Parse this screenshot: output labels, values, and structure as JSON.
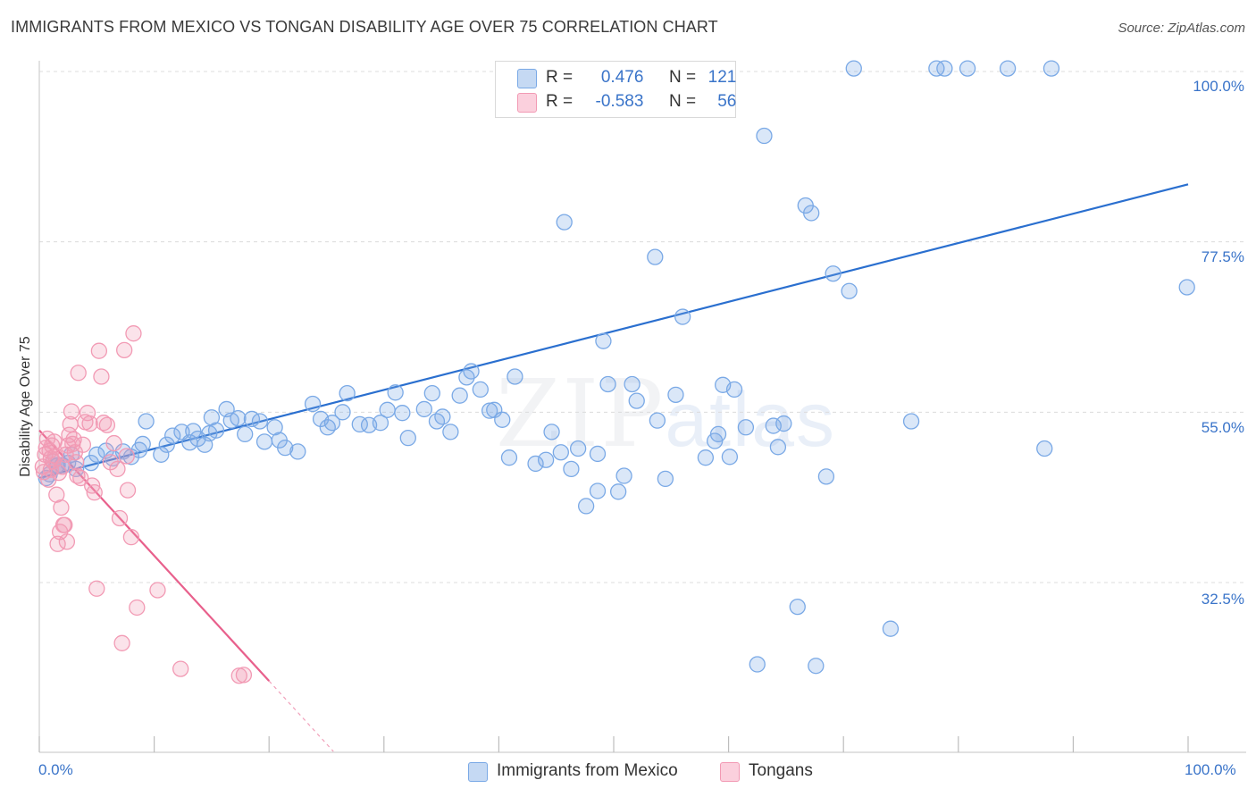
{
  "title": "IMMIGRANTS FROM MEXICO VS TONGAN DISABILITY AGE OVER 75 CORRELATION CHART",
  "source": "Source: ZipAtlas.com",
  "watermark": {
    "zip": "ZIP",
    "atlas": "atlas"
  },
  "legend": {
    "r_label": "R =",
    "n_label": "N =",
    "rows": [
      {
        "series": "Immigrants from Mexico",
        "r": "0.476",
        "n": "121",
        "color": "#7aa9e6"
      },
      {
        "series": "Tongans",
        "r": "-0.583",
        "n": "56",
        "color": "#f29ab4"
      }
    ]
  },
  "chart_data": {
    "type": "scatter",
    "title": "IMMIGRANTS FROM MEXICO VS TONGAN DISABILITY AGE OVER 75 CORRELATION CHART",
    "xlabel": "",
    "ylabel": "Disability Age Over 75",
    "xlim": [
      0,
      100
    ],
    "ylim": [
      10,
      102
    ],
    "x_tick_labels": [
      "0.0%",
      "100.0%"
    ],
    "y_ticks": [
      32.5,
      55.0,
      77.5,
      100.0
    ],
    "y_tick_labels": [
      "32.5%",
      "55.0%",
      "77.5%",
      "100.0%"
    ],
    "grid": "horizontal dashed",
    "legend_position": "top-center",
    "series": [
      {
        "name": "Immigrants from Mexico",
        "color": "#7aa9e6",
        "trend": {
          "x0": 0.0,
          "y0": 46.3,
          "x1": 100.0,
          "y1": 85.1,
          "color": "#2a6fcf"
        },
        "points": [
          [
            0.6,
            46.3
          ],
          [
            0.9,
            46.8
          ],
          [
            1.2,
            48.5
          ],
          [
            1.5,
            47.9
          ],
          [
            2.0,
            48.0
          ],
          [
            2.5,
            48.3
          ],
          [
            2.8,
            49.4
          ],
          [
            3.2,
            47.5
          ],
          [
            4.5,
            48.3
          ],
          [
            5.0,
            49.4
          ],
          [
            5.8,
            49.9
          ],
          [
            6.4,
            48.9
          ],
          [
            7.3,
            49.8
          ],
          [
            8.0,
            49.1
          ],
          [
            8.7,
            50.0
          ],
          [
            9.0,
            50.8
          ],
          [
            9.3,
            53.8
          ],
          [
            10.6,
            49.4
          ],
          [
            11.1,
            50.7
          ],
          [
            11.6,
            51.9
          ],
          [
            12.4,
            52.4
          ],
          [
            13.1,
            51.0
          ],
          [
            13.4,
            52.5
          ],
          [
            13.8,
            51.5
          ],
          [
            14.4,
            50.7
          ],
          [
            14.8,
            52.2
          ],
          [
            15.0,
            54.3
          ],
          [
            15.4,
            52.6
          ],
          [
            16.3,
            55.4
          ],
          [
            16.7,
            53.9
          ],
          [
            17.3,
            54.2
          ],
          [
            17.9,
            52.1
          ],
          [
            18.5,
            54.1
          ],
          [
            19.2,
            53.8
          ],
          [
            19.6,
            51.1
          ],
          [
            20.5,
            53.0
          ],
          [
            20.9,
            51.3
          ],
          [
            21.4,
            50.3
          ],
          [
            22.5,
            49.8
          ],
          [
            23.8,
            56.1
          ],
          [
            24.5,
            54.1
          ],
          [
            25.1,
            53.0
          ],
          [
            25.5,
            53.6
          ],
          [
            26.4,
            55.0
          ],
          [
            26.8,
            57.5
          ],
          [
            27.9,
            53.4
          ],
          [
            28.7,
            53.3
          ],
          [
            29.7,
            53.6
          ],
          [
            30.3,
            55.3
          ],
          [
            31.0,
            57.6
          ],
          [
            31.6,
            54.9
          ],
          [
            32.1,
            51.6
          ],
          [
            33.5,
            55.4
          ],
          [
            34.2,
            57.5
          ],
          [
            34.6,
            53.8
          ],
          [
            35.1,
            54.4
          ],
          [
            35.8,
            52.4
          ],
          [
            36.6,
            57.2
          ],
          [
            37.2,
            59.6
          ],
          [
            37.6,
            60.4
          ],
          [
            38.4,
            58.0
          ],
          [
            39.2,
            55.2
          ],
          [
            39.6,
            55.3
          ],
          [
            40.3,
            54.0
          ],
          [
            40.9,
            49.0
          ],
          [
            41.4,
            59.7
          ],
          [
            43.2,
            48.2
          ],
          [
            44.1,
            48.7
          ],
          [
            44.6,
            52.4
          ],
          [
            45.4,
            49.7
          ],
          [
            45.7,
            80.1
          ],
          [
            46.3,
            47.5
          ],
          [
            46.9,
            50.2
          ],
          [
            47.6,
            42.6
          ],
          [
            48.6,
            44.6
          ],
          [
            48.6,
            49.5
          ],
          [
            49.1,
            64.4
          ],
          [
            49.5,
            58.7
          ],
          [
            50.4,
            44.5
          ],
          [
            50.9,
            46.6
          ],
          [
            51.6,
            58.7
          ],
          [
            52.0,
            56.5
          ],
          [
            53.6,
            75.5
          ],
          [
            53.8,
            53.9
          ],
          [
            54.5,
            46.2
          ],
          [
            55.4,
            57.3
          ],
          [
            56.0,
            67.6
          ],
          [
            58.0,
            49.0
          ],
          [
            58.8,
            51.2
          ],
          [
            59.1,
            52.1
          ],
          [
            59.5,
            58.6
          ],
          [
            60.1,
            49.1
          ],
          [
            60.5,
            58.0
          ],
          [
            61.5,
            53.0
          ],
          [
            62.5,
            21.7
          ],
          [
            63.1,
            91.5
          ],
          [
            63.9,
            53.2
          ],
          [
            64.3,
            50.4
          ],
          [
            64.8,
            53.5
          ],
          [
            66.0,
            29.3
          ],
          [
            66.7,
            82.3
          ],
          [
            67.2,
            81.3
          ],
          [
            67.6,
            21.5
          ],
          [
            68.5,
            46.5
          ],
          [
            69.1,
            73.3
          ],
          [
            70.5,
            71.0
          ],
          [
            70.9,
            100.4
          ],
          [
            74.1,
            26.4
          ],
          [
            75.9,
            53.8
          ],
          [
            78.1,
            100.4
          ],
          [
            78.8,
            100.4
          ],
          [
            80.8,
            100.4
          ],
          [
            84.3,
            100.4
          ],
          [
            87.5,
            50.2
          ],
          [
            88.1,
            100.4
          ],
          [
            99.9,
            71.5
          ],
          [
            1.6,
            48.0
          ]
        ]
      },
      {
        "name": "Tongans",
        "color": "#f29ab4",
        "trend": {
          "x0": 0.0,
          "y0": 52.6,
          "x1": 20.0,
          "y1": 19.5,
          "dash_to_x": 25.6,
          "dash_to_y": 10.2,
          "color": "#e8608c"
        },
        "points": [
          [
            0.3,
            47.8
          ],
          [
            0.4,
            47.1
          ],
          [
            0.5,
            49.4
          ],
          [
            0.6,
            50.3
          ],
          [
            0.7,
            51.5
          ],
          [
            0.8,
            46.1
          ],
          [
            0.9,
            49.9
          ],
          [
            1.0,
            47.4
          ],
          [
            1.1,
            50.6
          ],
          [
            1.2,
            48.5
          ],
          [
            1.3,
            51.1
          ],
          [
            1.4,
            49.2
          ],
          [
            1.5,
            44.1
          ],
          [
            1.6,
            37.6
          ],
          [
            1.7,
            47.0
          ],
          [
            1.8,
            39.2
          ],
          [
            1.9,
            42.4
          ],
          [
            2.0,
            47.8
          ],
          [
            2.1,
            40.1
          ],
          [
            2.2,
            40.1
          ],
          [
            2.3,
            49.4
          ],
          [
            2.4,
            37.9
          ],
          [
            2.5,
            50.6
          ],
          [
            2.6,
            52.0
          ],
          [
            2.7,
            53.4
          ],
          [
            2.8,
            55.1
          ],
          [
            2.9,
            50.8
          ],
          [
            3.0,
            51.4
          ],
          [
            3.1,
            49.7
          ],
          [
            3.2,
            48.4
          ],
          [
            3.3,
            46.6
          ],
          [
            3.4,
            60.2
          ],
          [
            3.6,
            46.3
          ],
          [
            3.8,
            50.7
          ],
          [
            4.0,
            53.7
          ],
          [
            4.2,
            54.9
          ],
          [
            4.4,
            53.5
          ],
          [
            4.6,
            45.3
          ],
          [
            4.8,
            44.4
          ],
          [
            5.0,
            31.7
          ],
          [
            5.2,
            63.1
          ],
          [
            5.4,
            59.7
          ],
          [
            5.6,
            53.6
          ],
          [
            5.9,
            53.3
          ],
          [
            6.2,
            48.4
          ],
          [
            6.5,
            50.9
          ],
          [
            6.8,
            47.5
          ],
          [
            7.0,
            41.0
          ],
          [
            7.2,
            24.5
          ],
          [
            7.4,
            63.2
          ],
          [
            7.6,
            49.2
          ],
          [
            7.7,
            44.7
          ],
          [
            8.0,
            38.5
          ],
          [
            8.2,
            65.4
          ],
          [
            8.5,
            29.2
          ],
          [
            10.3,
            31.5
          ]
        ],
        "extra_points": [
          [
            12.3,
            21.1
          ],
          [
            17.4,
            20.2
          ],
          [
            17.8,
            20.3
          ],
          [
            1.0,
            48.9
          ]
        ]
      }
    ]
  },
  "ylabel": "Disability Age Over 75",
  "y_tick_labels": [
    "100.0%",
    "77.5%",
    "55.0%",
    "32.5%"
  ],
  "x_tick_left": "0.0%",
  "x_tick_right": "100.0%"
}
